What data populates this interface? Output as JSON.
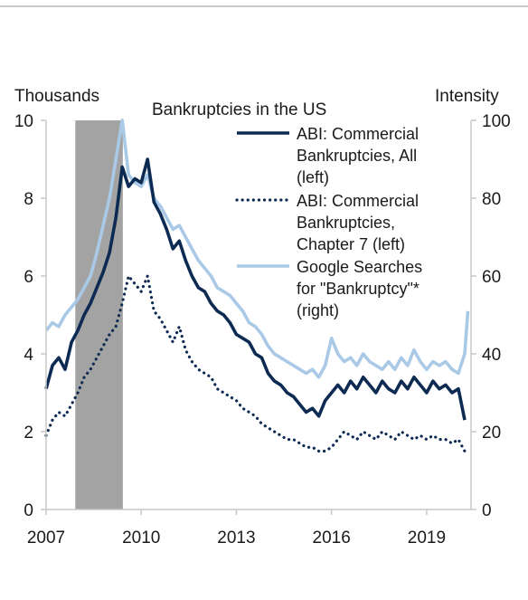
{
  "chart_data": {
    "type": "line",
    "title": "Bankruptcies in the US",
    "y_left_label": "Thousands",
    "y_right_label": "Intensity",
    "ylim_left": [
      0,
      10
    ],
    "ylim_right": [
      0,
      100
    ],
    "y_left_ticks": [
      "0",
      "2",
      "4",
      "6",
      "8",
      "10"
    ],
    "y_right_ticks": [
      "0",
      "20",
      "40",
      "60",
      "80",
      "100"
    ],
    "xlim": [
      2007,
      2020.4
    ],
    "x_ticks": [
      "2007",
      "2010",
      "2013",
      "2016",
      "2019"
    ],
    "recession": [
      2007.92,
      2009.42
    ],
    "legend_placement": "top-right",
    "legend": [
      {
        "lines": [
          "ABI: Commercial",
          "Bankruptcies, All",
          "(left)"
        ],
        "style": "solid",
        "color": "#0d2b52"
      },
      {
        "lines": [
          "ABI: Commercial",
          "Bankruptcies,",
          "Chapter 7 (left)"
        ],
        "style": "dotted",
        "color": "#0d2b52"
      },
      {
        "lines": [
          "Google Searches",
          "for \"Bankruptcy\"*",
          "(right)"
        ],
        "style": "solid",
        "color": "#a9c9e6"
      }
    ],
    "series": [
      {
        "name": "ABI: Commercial Bankruptcies, All (left)",
        "axis": "left",
        "x": [
          2007.0,
          2007.2,
          2007.4,
          2007.6,
          2007.8,
          2008.0,
          2008.2,
          2008.4,
          2008.6,
          2008.8,
          2009.0,
          2009.2,
          2009.4,
          2009.6,
          2009.8,
          2010.0,
          2010.2,
          2010.4,
          2010.6,
          2010.8,
          2011.0,
          2011.2,
          2011.4,
          2011.6,
          2011.8,
          2012.0,
          2012.2,
          2012.4,
          2012.6,
          2012.8,
          2013.0,
          2013.2,
          2013.4,
          2013.6,
          2013.8,
          2014.0,
          2014.2,
          2014.4,
          2014.6,
          2014.8,
          2015.0,
          2015.2,
          2015.4,
          2015.6,
          2015.8,
          2016.0,
          2016.2,
          2016.4,
          2016.6,
          2016.8,
          2017.0,
          2017.2,
          2017.4,
          2017.6,
          2017.8,
          2018.0,
          2018.2,
          2018.4,
          2018.6,
          2018.8,
          2019.0,
          2019.2,
          2019.4,
          2019.6,
          2019.8,
          2020.0,
          2020.2
        ],
        "y": [
          3.1,
          3.7,
          3.9,
          3.6,
          4.3,
          4.6,
          5.0,
          5.3,
          5.7,
          6.1,
          6.6,
          7.5,
          8.8,
          8.3,
          8.5,
          8.4,
          9.0,
          7.9,
          7.6,
          7.2,
          6.7,
          6.9,
          6.4,
          6.0,
          5.7,
          5.6,
          5.3,
          5.1,
          5.0,
          4.8,
          4.5,
          4.4,
          4.3,
          4.0,
          3.9,
          3.5,
          3.3,
          3.2,
          3.0,
          2.9,
          2.7,
          2.5,
          2.6,
          2.4,
          2.8,
          3.0,
          3.2,
          3.0,
          3.3,
          3.1,
          3.4,
          3.2,
          3.0,
          3.3,
          3.1,
          3.0,
          3.3,
          3.1,
          3.4,
          3.2,
          3.0,
          3.3,
          3.1,
          3.2,
          3.0,
          3.1,
          2.3
        ]
      },
      {
        "name": "ABI: Commercial Bankruptcies, Chapter 7 (left)",
        "axis": "left",
        "x": [
          2007.0,
          2007.2,
          2007.4,
          2007.6,
          2007.8,
          2008.0,
          2008.2,
          2008.4,
          2008.6,
          2008.8,
          2009.0,
          2009.2,
          2009.4,
          2009.6,
          2009.8,
          2010.0,
          2010.2,
          2010.4,
          2010.6,
          2010.8,
          2011.0,
          2011.2,
          2011.4,
          2011.6,
          2011.8,
          2012.0,
          2012.2,
          2012.4,
          2012.6,
          2012.8,
          2013.0,
          2013.2,
          2013.4,
          2013.6,
          2013.8,
          2014.0,
          2014.2,
          2014.4,
          2014.6,
          2014.8,
          2015.0,
          2015.2,
          2015.4,
          2015.6,
          2015.8,
          2016.0,
          2016.2,
          2016.4,
          2016.6,
          2016.8,
          2017.0,
          2017.2,
          2017.4,
          2017.6,
          2017.8,
          2018.0,
          2018.2,
          2018.4,
          2018.6,
          2018.8,
          2019.0,
          2019.2,
          2019.4,
          2019.6,
          2019.8,
          2020.0,
          2020.2
        ],
        "y": [
          1.9,
          2.3,
          2.5,
          2.4,
          2.7,
          3.0,
          3.4,
          3.6,
          3.9,
          4.2,
          4.5,
          4.7,
          5.3,
          6.0,
          5.8,
          5.6,
          6.0,
          5.1,
          4.9,
          4.6,
          4.3,
          4.7,
          4.1,
          3.8,
          3.6,
          3.5,
          3.4,
          3.1,
          3.0,
          2.9,
          2.8,
          2.6,
          2.5,
          2.4,
          2.2,
          2.1,
          2.0,
          1.9,
          1.8,
          1.8,
          1.7,
          1.6,
          1.6,
          1.5,
          1.5,
          1.6,
          1.8,
          2.0,
          1.9,
          1.8,
          2.0,
          1.9,
          1.8,
          2.0,
          1.9,
          1.8,
          2.0,
          1.9,
          1.8,
          1.9,
          1.8,
          1.9,
          1.8,
          1.8,
          1.7,
          1.8,
          1.5
        ]
      },
      {
        "name": "Google Searches for \"Bankruptcy\"* (right)",
        "axis": "right",
        "x": [
          2007.0,
          2007.2,
          2007.4,
          2007.6,
          2007.8,
          2008.0,
          2008.2,
          2008.4,
          2008.6,
          2008.8,
          2009.0,
          2009.2,
          2009.4,
          2009.6,
          2009.8,
          2010.0,
          2010.2,
          2010.4,
          2010.6,
          2010.8,
          2011.0,
          2011.2,
          2011.4,
          2011.6,
          2011.8,
          2012.0,
          2012.2,
          2012.4,
          2012.6,
          2012.8,
          2013.0,
          2013.2,
          2013.4,
          2013.6,
          2013.8,
          2014.0,
          2014.2,
          2014.4,
          2014.6,
          2014.8,
          2015.0,
          2015.2,
          2015.4,
          2015.6,
          2015.8,
          2016.0,
          2016.2,
          2016.4,
          2016.6,
          2016.8,
          2017.0,
          2017.2,
          2017.4,
          2017.6,
          2017.8,
          2018.0,
          2018.2,
          2018.4,
          2018.6,
          2018.8,
          2019.0,
          2019.2,
          2019.4,
          2019.6,
          2019.8,
          2020.0,
          2020.2,
          2020.3
        ],
        "y": [
          46,
          48,
          47,
          50,
          52,
          54,
          57,
          60,
          66,
          73,
          80,
          90,
          100,
          86,
          84,
          83,
          86,
          80,
          78,
          75,
          72,
          73,
          70,
          67,
          64,
          62,
          60,
          57,
          56,
          55,
          53,
          51,
          48,
          47,
          45,
          42,
          40,
          39,
          38,
          37,
          36,
          35,
          36,
          34,
          37,
          44,
          40,
          38,
          39,
          37,
          40,
          38,
          37,
          36,
          38,
          36,
          39,
          37,
          41,
          38,
          36,
          38,
          37,
          38,
          36,
          35,
          40,
          51
        ]
      }
    ]
  }
}
